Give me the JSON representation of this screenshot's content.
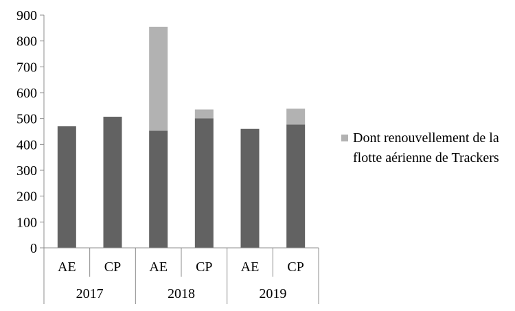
{
  "chart_data": {
    "type": "bar",
    "stacked": true,
    "groups": [
      {
        "label": "2017",
        "categories": [
          "AE",
          "CP"
        ]
      },
      {
        "label": "2018",
        "categories": [
          "AE",
          "CP"
        ]
      },
      {
        "label": "2019",
        "categories": [
          "AE",
          "CP"
        ]
      }
    ],
    "series": [
      {
        "name": "",
        "color": "#626262",
        "values": [
          470,
          507,
          453,
          501,
          460,
          477
        ]
      },
      {
        "name": "Dont renouvellement de la flotte aérienne de Trackers",
        "color": "#b2b2b2",
        "values": [
          0,
          0,
          402,
          34,
          0,
          61
        ]
      }
    ],
    "y_ticks": [
      "0",
      "100",
      "200",
      "300",
      "400",
      "500",
      "600",
      "700",
      "800",
      "900"
    ],
    "ylim": [
      0,
      900
    ],
    "grid": false,
    "legend_position": "right"
  }
}
